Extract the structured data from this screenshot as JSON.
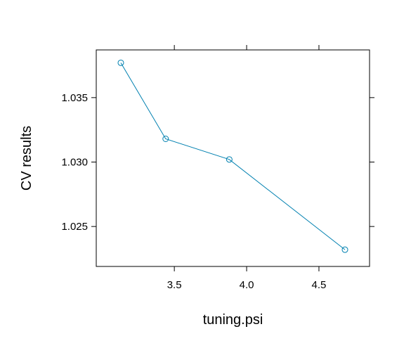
{
  "chart_data": {
    "type": "line",
    "title": "",
    "xlabel": "tuning.psi",
    "ylabel": "CV results",
    "x": [
      3.13,
      3.44,
      3.88,
      4.68
    ],
    "series": [
      {
        "values": [
          1.0377,
          1.0318,
          1.0302,
          1.0232
        ]
      }
    ],
    "xlim": [
      2.96,
      4.85
    ],
    "ylim": [
      1.0219,
      1.0387
    ],
    "xticks": [
      "3.5",
      "4.0",
      "4.5"
    ],
    "xtick_values": [
      3.5,
      4.0,
      4.5
    ],
    "yticks": [
      "1.025",
      "1.030",
      "1.035"
    ],
    "ytick_values": [
      1.025,
      1.03,
      1.035
    ],
    "marker": "open-circle",
    "grid": false,
    "colors": {
      "series": "#0080b0",
      "axes": "#000000"
    }
  }
}
